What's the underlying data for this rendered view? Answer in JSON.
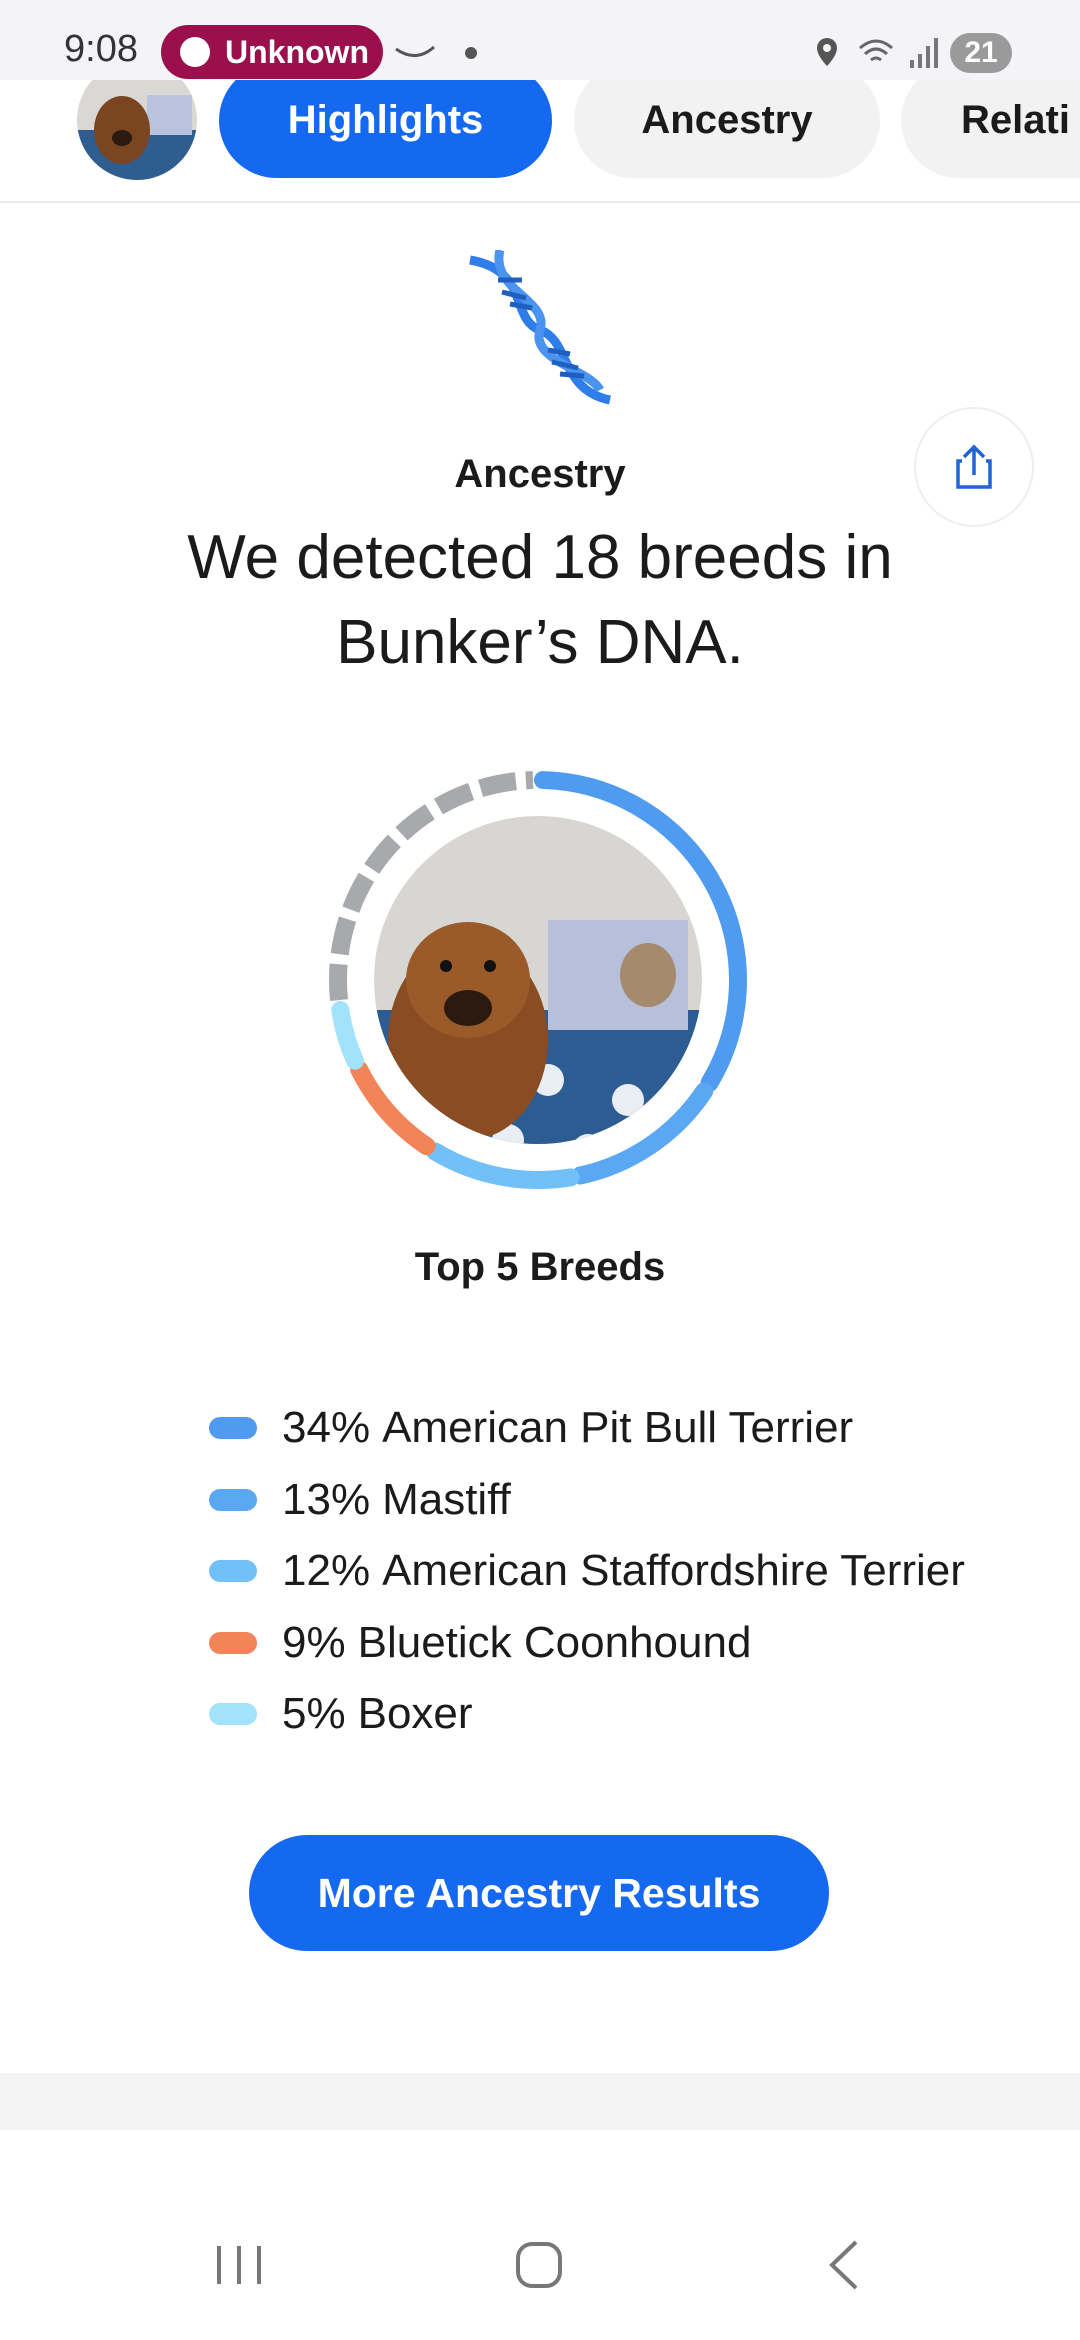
{
  "status_bar": {
    "time": "9:08",
    "app": "Unknown",
    "battery": "21"
  },
  "tabs": [
    "Highlights",
    "Ancestry",
    "Relati"
  ],
  "section": {
    "label": "Ancestry",
    "headline": "We detected 18 breeds in Bunker’s DNA.",
    "subheading": "Top 5 Breeds"
  },
  "breeds": [
    {
      "value": 34,
      "label": "34%",
      "name": "American Pit Bull Terrier",
      "color": "#4f9bf0"
    },
    {
      "value": 13,
      "label": "13%",
      "name": "Mastiff",
      "color": "#5aa8f3"
    },
    {
      "value": 12,
      "label": "12%",
      "name": "American Staffordshire Terrier",
      "color": "#72c0f8"
    },
    {
      "value": 9,
      "label": "9%",
      "name": "Bluetick Coonhound",
      "color": "#f2845a"
    },
    {
      "value": 5,
      "label": "5%",
      "name": "Boxer",
      "color": "#a2e2fb"
    }
  ],
  "button": "More Ancestry Results"
}
